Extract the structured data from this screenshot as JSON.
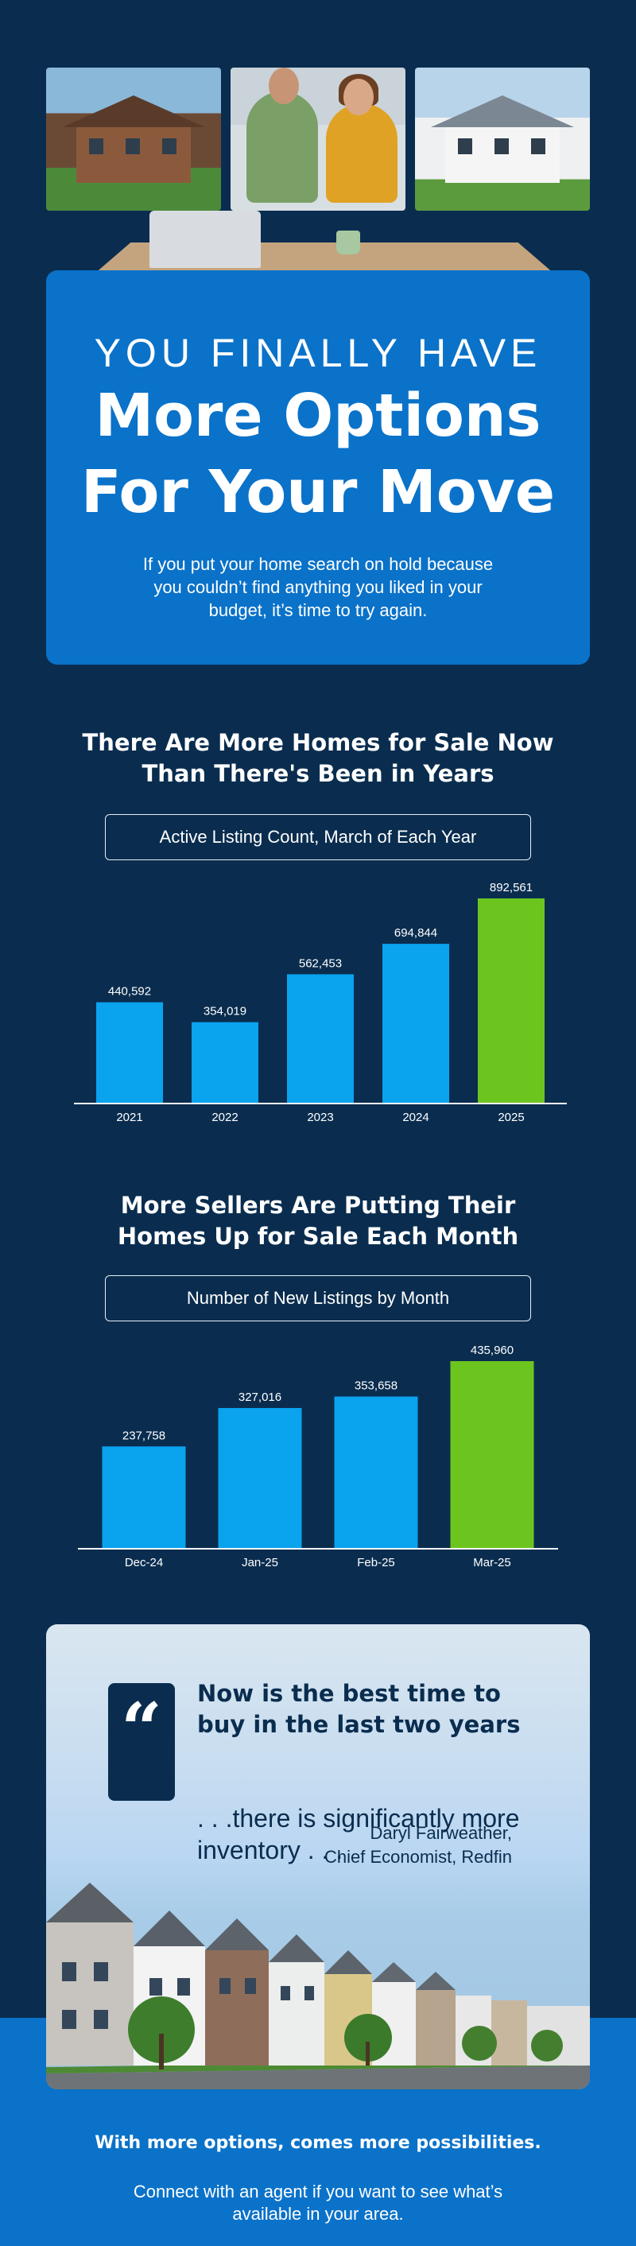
{
  "hero": {
    "pre_title": "YOU FINALLY HAVE",
    "title_line1": "More Options",
    "title_line2": "For Your Move",
    "subtitle": "If you put your home search on hold because you couldn’t find anything you liked in your budget, it’s time to try again."
  },
  "section1": {
    "title_line1": "There Are More Homes for Sale Now",
    "title_line2": "Than There's Been in Years",
    "chart_caption": "Active Listing Count, March of Each Year"
  },
  "section2": {
    "title_line1": "More Sellers Are Putting Their",
    "title_line2": "Homes Up for Sale Each Month",
    "chart_caption": "Number of New Listings by Month"
  },
  "quote": {
    "mark": "“",
    "strong": "Now is the best time to buy in the last two years",
    "normal": ". . .there is significantly more inventory . . .",
    "author_name": "Daryl Fairweather,",
    "author_title": "Chief Economist, Redfin"
  },
  "footer": {
    "bold": "With more options, comes more possibilities.",
    "text": "Connect with an agent if you want to see what’s available in your area."
  },
  "colors": {
    "background": "#0a2d4f",
    "accent_blue": "#0a72c9",
    "bar_blue": "#0aa3ee",
    "bar_green": "#6cc51f"
  },
  "chart_data": [
    {
      "type": "bar",
      "categories": [
        "2021",
        "2022",
        "2023",
        "2024",
        "2025"
      ],
      "values": [
        440592,
        354019,
        562453,
        694844,
        892561
      ],
      "value_labels": [
        "440,592",
        "354,019",
        "562,453",
        "694,844",
        "892,561"
      ],
      "highlight_index": 4,
      "ylim": [
        0,
        892561
      ]
    },
    {
      "type": "bar",
      "categories": [
        "Dec-24",
        "Jan-25",
        "Feb-25",
        "Mar-25"
      ],
      "values": [
        237758,
        327016,
        353658,
        435960
      ],
      "value_labels": [
        "237,758",
        "327,016",
        "353,658",
        "435,960"
      ],
      "highlight_index": 3,
      "ylim": [
        0,
        435960
      ]
    }
  ]
}
